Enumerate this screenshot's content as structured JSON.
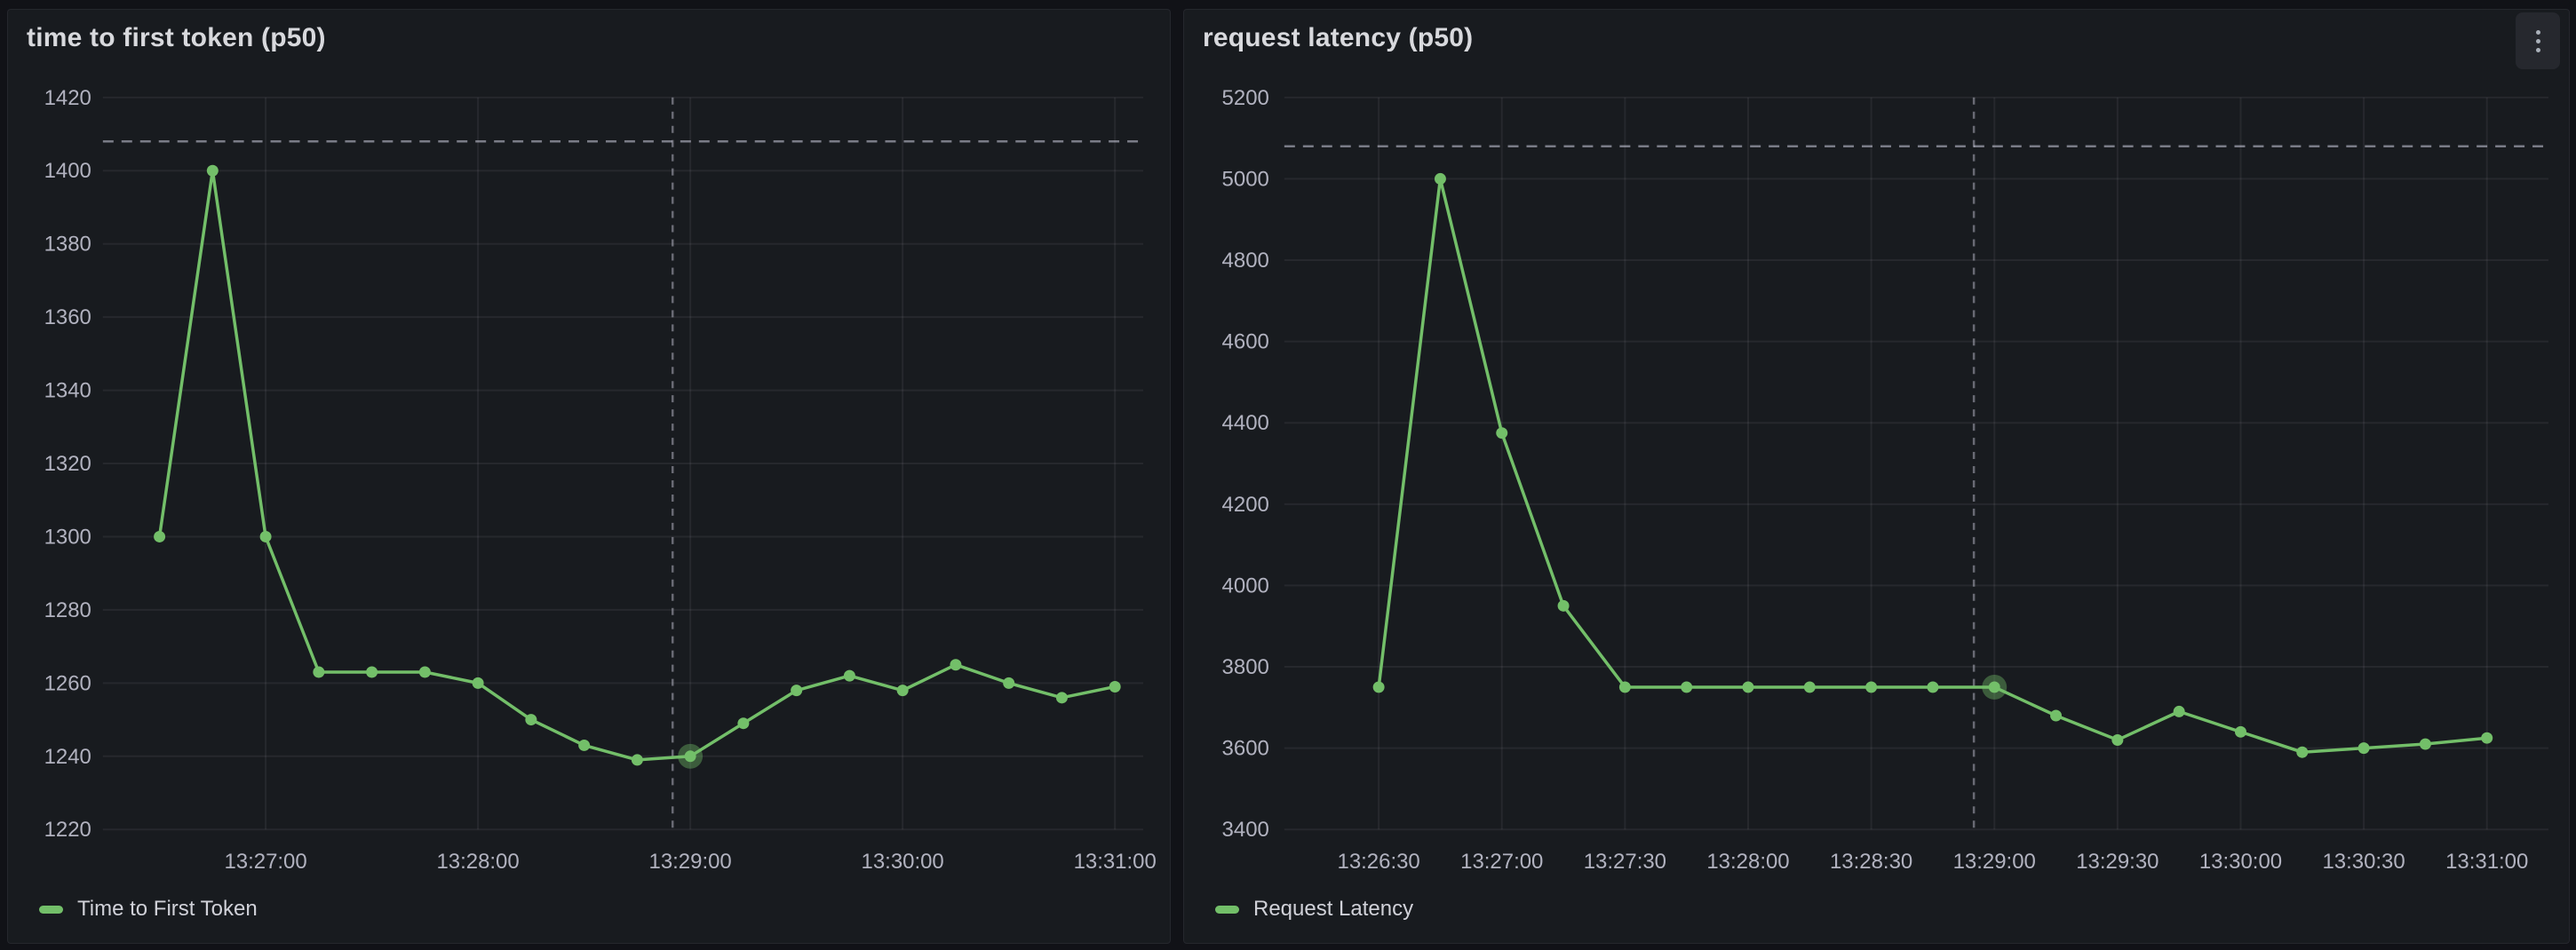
{
  "page": {
    "background_color": "#111217",
    "panel_background_color": "#181b1f"
  },
  "accent_color": "#73bf69",
  "panels": [
    {
      "title": "time to first token (p50)",
      "legend": "Time to First Token",
      "accent_color": "#73bf69",
      "has_menu_button": false
    },
    {
      "title": "request latency (p50)",
      "legend": "Request Latency",
      "accent_color": "#73bf69",
      "has_menu_button": true,
      "menu_icon": "kebab-vertical-icon"
    }
  ],
  "chart_data": [
    {
      "type": "line",
      "title": "time to first token (p50)",
      "xlabel": "",
      "ylabel": "",
      "x": [
        "13:26:30",
        "13:26:45",
        "13:27:00",
        "13:27:15",
        "13:27:30",
        "13:27:45",
        "13:28:00",
        "13:28:15",
        "13:28:30",
        "13:28:45",
        "13:29:00",
        "13:29:15",
        "13:29:30",
        "13:29:45",
        "13:30:00",
        "13:30:15",
        "13:30:30",
        "13:30:45",
        "13:31:00"
      ],
      "series": [
        {
          "name": "Time to First Token",
          "color": "#73bf69",
          "values": [
            1300,
            1400,
            1300,
            1263,
            1263,
            1263,
            1260,
            1250,
            1243,
            1239,
            1240,
            1249,
            1258,
            1262,
            1258,
            1265,
            1260,
            1256,
            1259
          ]
        }
      ],
      "x_tick_labels": [
        "13:27:00",
        "13:28:00",
        "13:29:00",
        "13:30:00",
        "13:31:00"
      ],
      "x_domain": [
        "13:26:14",
        "13:31:08"
      ],
      "y_ticks": [
        1220,
        1240,
        1260,
        1280,
        1300,
        1320,
        1340,
        1360,
        1380,
        1400,
        1420
      ],
      "ylim": [
        1220,
        1420
      ],
      "threshold_line": 1408,
      "annotation_vline": "13:28:55",
      "highlight_index": 10,
      "grid": true,
      "legend_position": "bottom-left",
      "point_markers": true
    },
    {
      "type": "line",
      "title": "request latency (p50)",
      "xlabel": "",
      "ylabel": "",
      "x": [
        "13:26:30",
        "13:26:45",
        "13:27:00",
        "13:27:15",
        "13:27:30",
        "13:27:45",
        "13:28:00",
        "13:28:15",
        "13:28:30",
        "13:28:45",
        "13:29:00",
        "13:29:15",
        "13:29:30",
        "13:29:45",
        "13:30:00",
        "13:30:15",
        "13:30:30",
        "13:30:45",
        "13:31:00"
      ],
      "series": [
        {
          "name": "Request Latency",
          "color": "#73bf69",
          "values": [
            3750,
            5000,
            4375,
            3950,
            3750,
            3750,
            3750,
            3750,
            3750,
            3750,
            3750,
            3680,
            3620,
            3690,
            3640,
            3590,
            3600,
            3610,
            3625
          ]
        }
      ],
      "x_tick_labels": [
        "13:26:30",
        "13:27:00",
        "13:27:30",
        "13:28:00",
        "13:28:30",
        "13:29:00",
        "13:29:30",
        "13:30:00",
        "13:30:30",
        "13:31:00"
      ],
      "x_domain": [
        "13:26:07",
        "13:31:15"
      ],
      "y_ticks": [
        3400,
        3600,
        3800,
        4000,
        4200,
        4400,
        4600,
        4800,
        5000,
        5200
      ],
      "ylim": [
        3400,
        5200
      ],
      "threshold_line": 5080,
      "annotation_vline": "13:28:55",
      "highlight_index": 10,
      "grid": true,
      "legend_position": "bottom-left",
      "point_markers": true
    }
  ]
}
